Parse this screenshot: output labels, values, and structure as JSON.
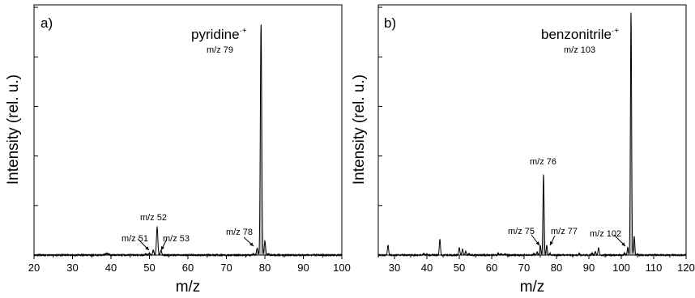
{
  "chart_data": [
    {
      "type": "line",
      "panel_label": "a)",
      "xlabel": "m/z",
      "ylabel": "Intensity (rel. u.)",
      "xlim": [
        20,
        100
      ],
      "xticks": [
        "20",
        "30",
        "40",
        "50",
        "60",
        "70",
        "80",
        "90",
        "100"
      ],
      "y_tick_count": 5,
      "peak_label": {
        "name": "pyridine",
        "sup": "·+",
        "mz": "m/z 79"
      },
      "annotations": [
        {
          "text": "m/z 52",
          "x": 52,
          "arrow": false
        },
        {
          "text": "m/z 51",
          "x": 51,
          "arrow": true
        },
        {
          "text": "m/z 53",
          "x": 53,
          "arrow": true
        },
        {
          "text": "m/z 78",
          "x": 78,
          "arrow": true
        }
      ],
      "series": [
        {
          "values": [
            [
              38.5,
              0.004
            ],
            [
              39,
              0.006
            ],
            [
              39.5,
              0.004
            ],
            [
              45,
              0.002
            ],
            [
              49,
              0.005
            ],
            [
              50,
              0.008
            ],
            [
              51,
              0.02
            ],
            [
              52,
              0.12
            ],
            [
              53,
              0.02
            ],
            [
              77,
              0.005
            ],
            [
              78,
              0.03
            ],
            [
              79,
              1.0
            ],
            [
              80,
              0.06
            ],
            [
              81,
              0.004
            ]
          ]
        }
      ]
    },
    {
      "type": "line",
      "panel_label": "b)",
      "xlabel": "m/z",
      "ylabel": "Intensity (rel. u.)",
      "xlim": [
        25,
        120
      ],
      "xticks": [
        "30",
        "40",
        "50",
        "60",
        "70",
        "80",
        "90",
        "100",
        "110",
        "120"
      ],
      "y_tick_count": 5,
      "peak_label": {
        "name": "benzonitrile",
        "sup": "·+",
        "mz": "m/z 103"
      },
      "annotations": [
        {
          "text": "m/z 76",
          "x": 76,
          "arrow": false
        },
        {
          "text": "m/z 75",
          "x": 75,
          "arrow": true
        },
        {
          "text": "m/z 77",
          "x": 77,
          "arrow": true
        },
        {
          "text": "m/z 102",
          "x": 102,
          "arrow": true
        }
      ],
      "series": [
        {
          "values": [
            [
              28,
              0.04
            ],
            [
              39,
              0.006
            ],
            [
              40,
              0.004
            ],
            [
              44,
              0.065
            ],
            [
              50,
              0.03
            ],
            [
              51,
              0.025
            ],
            [
              52,
              0.015
            ],
            [
              53,
              0.005
            ],
            [
              62,
              0.008
            ],
            [
              63,
              0.006
            ],
            [
              64,
              0.004
            ],
            [
              73,
              0.005
            ],
            [
              74,
              0.012
            ],
            [
              75,
              0.04
            ],
            [
              76,
              0.33
            ],
            [
              77,
              0.04
            ],
            [
              78,
              0.008
            ],
            [
              87,
              0.006
            ],
            [
              91,
              0.008
            ],
            [
              92,
              0.015
            ],
            [
              93,
              0.03
            ],
            [
              101,
              0.008
            ],
            [
              102,
              0.03
            ],
            [
              103,
              1.0
            ],
            [
              104,
              0.075
            ],
            [
              105,
              0.005
            ]
          ]
        }
      ]
    }
  ]
}
